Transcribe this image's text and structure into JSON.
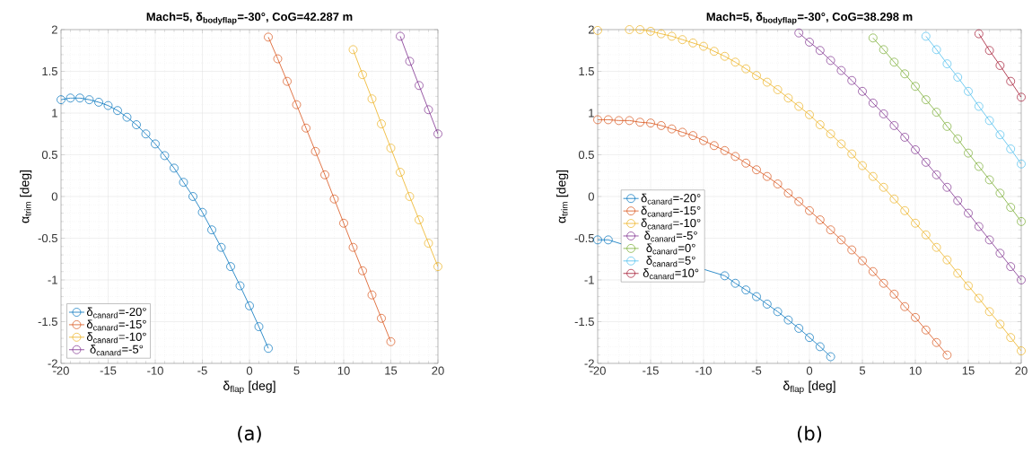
{
  "chart_data": [
    {
      "type": "line",
      "title": "Mach=5, δ$_{bodyflap}$=-30°, CoG=42.287 m",
      "xlabel": "δ$_{flap}$ [deg]",
      "ylabel": "α$_{trim}$ [deg]",
      "annotations": [
        "(a)"
      ],
      "xlim": [
        -20,
        20
      ],
      "ylim": [
        -2,
        2
      ],
      "xticks": [
        -20,
        -15,
        -10,
        -5,
        0,
        5,
        10,
        15,
        20
      ],
      "yticks": [
        -2,
        -1.5,
        -1,
        -0.5,
        0,
        0.5,
        1,
        1.5,
        2
      ],
      "grid": true,
      "legend": "bottom left",
      "marker": "circle",
      "line_style": "solid",
      "series": [
        {
          "name": "δ$_{canard}$=-20°",
          "color": "#0072bd",
          "x": [
            -20,
            -19,
            -18,
            -17,
            -16,
            -15,
            -14,
            -13,
            -12,
            -11,
            -10,
            -9,
            -8,
            -7,
            -6,
            -5,
            -4,
            -3,
            -2,
            -1,
            0,
            1,
            2
          ],
          "values": [
            1.16,
            1.18,
            1.18,
            1.16,
            1.13,
            1.09,
            1.03,
            0.95,
            0.86,
            0.75,
            0.63,
            0.49,
            0.34,
            0.17,
            0.0,
            -0.19,
            -0.4,
            -0.61,
            -0.84,
            -1.07,
            -1.31,
            -1.56,
            -1.82
          ]
        },
        {
          "name": "δ$_{canard}$=-15°",
          "color": "#d95319",
          "x": [
            2,
            3,
            4,
            5,
            6,
            7,
            8,
            9,
            10,
            11,
            12,
            13,
            14,
            15
          ],
          "values": [
            1.91,
            1.65,
            1.38,
            1.1,
            0.82,
            0.54,
            0.26,
            -0.03,
            -0.32,
            -0.61,
            -0.89,
            -1.18,
            -1.46,
            -1.74
          ]
        },
        {
          "name": "δ$_{canard}$=-10°",
          "color": "#edb120",
          "x": [
            11,
            12,
            13,
            14,
            15,
            16,
            17,
            18,
            19,
            20
          ],
          "values": [
            1.76,
            1.46,
            1.17,
            0.87,
            0.58,
            0.29,
            0.0,
            -0.28,
            -0.56,
            -0.84
          ]
        },
        {
          "name": "δ$_{canard}$=-5°",
          "color": "#7e2f8e",
          "x": [
            16,
            17,
            18,
            19,
            20
          ],
          "values": [
            1.92,
            1.62,
            1.33,
            1.04,
            0.75
          ]
        }
      ]
    },
    {
      "type": "line",
      "title": "Mach=5, δ$_{bodyflap}$=-30°, CoG=38.298 m",
      "xlabel": "δ$_{flap}$ [deg]",
      "ylabel": "α$_{trim}$ [deg]",
      "annotations": [
        "(b)"
      ],
      "xlim": [
        -20,
        20
      ],
      "ylim": [
        -2,
        2
      ],
      "xticks": [
        -20,
        -15,
        -10,
        -5,
        0,
        5,
        10,
        15,
        20
      ],
      "yticks": [
        -2,
        -1.5,
        -1,
        -0.5,
        0,
        0.5,
        1,
        1.5,
        2
      ],
      "grid": true,
      "legend": "left",
      "marker": "circle",
      "line_style": "solid",
      "series": [
        {
          "name": "δ$_{canard}$=-20°",
          "color": "#0072bd",
          "x": [
            -20,
            -19,
            -8,
            -7,
            -6,
            -5,
            -4,
            -3,
            -2,
            -1,
            0,
            1,
            2
          ],
          "values": [
            -0.52,
            -0.52,
            -0.95,
            -1.04,
            -1.12,
            -1.2,
            -1.29,
            -1.38,
            -1.48,
            -1.58,
            -1.69,
            -1.8,
            -1.92
          ]
        },
        {
          "name": "δ$_{canard}$=-15°",
          "color": "#d95319",
          "x": [
            -20,
            -19,
            -18,
            -17,
            -16,
            -15,
            -14,
            -13,
            -12,
            -11,
            -10,
            -9,
            -8,
            -7,
            -6,
            -5,
            -4,
            -3,
            -2,
            -1,
            0,
            1,
            2,
            3,
            4,
            5,
            6,
            7,
            8,
            9,
            10,
            11,
            12,
            13
          ],
          "values": [
            0.92,
            0.92,
            0.91,
            0.91,
            0.89,
            0.88,
            0.85,
            0.81,
            0.77,
            0.73,
            0.67,
            0.61,
            0.55,
            0.48,
            0.4,
            0.32,
            0.24,
            0.15,
            0.04,
            -0.06,
            -0.17,
            -0.28,
            -0.4,
            -0.52,
            -0.64,
            -0.77,
            -0.9,
            -1.04,
            -1.17,
            -1.32,
            -1.45,
            -1.6,
            -1.75,
            -1.9
          ]
        },
        {
          "name": "δ$_{canard}$=-10°",
          "color": "#edb120",
          "x": [
            -20,
            -19,
            -18,
            -17,
            -16,
            -15,
            -14,
            -13,
            -12,
            -11,
            -10,
            -9,
            -8,
            -7,
            -6,
            -5,
            -4,
            -3,
            -2,
            -1,
            0,
            1,
            2,
            3,
            4,
            5,
            6,
            7,
            8,
            9,
            10,
            11,
            12,
            13,
            14,
            15,
            16,
            17,
            18,
            19,
            20
          ],
          "values": [
            1.99,
            null,
            null,
            2.0,
            2.0,
            1.98,
            1.95,
            1.92,
            1.88,
            1.84,
            1.8,
            1.74,
            1.68,
            1.61,
            1.53,
            1.45,
            1.37,
            1.28,
            1.18,
            1.08,
            0.98,
            0.86,
            0.75,
            0.63,
            0.51,
            0.37,
            0.24,
            0.11,
            -0.03,
            -0.17,
            -0.32,
            -0.46,
            -0.61,
            -0.76,
            -0.92,
            -1.07,
            -1.22,
            -1.38,
            -1.53,
            -1.69,
            -1.85
          ]
        },
        {
          "name": "δ$_{canard}$=-5°",
          "color": "#7e2f8e",
          "x": [
            -1,
            0,
            1,
            2,
            3,
            4,
            5,
            6,
            7,
            8,
            9,
            10,
            11,
            12,
            13,
            14,
            15,
            16,
            17,
            18,
            19,
            20
          ],
          "values": [
            1.96,
            1.85,
            1.75,
            1.63,
            1.51,
            1.39,
            1.26,
            1.12,
            0.99,
            0.85,
            0.71,
            0.56,
            0.41,
            0.26,
            0.11,
            -0.05,
            -0.2,
            -0.36,
            -0.52,
            -0.68,
            -0.84,
            -1.0
          ]
        },
        {
          "name": "δ$_{canard}$=0°",
          "color": "#77ac30",
          "x": [
            6,
            7,
            8,
            9,
            10,
            11,
            12,
            13,
            14,
            15,
            16,
            17,
            18,
            19,
            20
          ],
          "values": [
            1.9,
            1.76,
            1.61,
            1.47,
            1.32,
            1.16,
            1.01,
            0.84,
            0.69,
            0.52,
            0.36,
            0.2,
            0.04,
            -0.13,
            -0.3
          ]
        },
        {
          "name": "δ$_{canard}$=5°",
          "color": "#4dbeee",
          "x": [
            11,
            12,
            13,
            14,
            15,
            16,
            17,
            18,
            19,
            20
          ],
          "values": [
            1.92,
            1.76,
            1.59,
            1.43,
            1.26,
            1.08,
            0.91,
            0.74,
            0.57,
            0.39
          ]
        },
        {
          "name": "δ$_{canard}$=10°",
          "color": "#a2142f",
          "x": [
            16,
            17,
            18,
            19,
            20
          ],
          "values": [
            1.95,
            1.75,
            1.57,
            1.38,
            1.19
          ]
        }
      ]
    }
  ]
}
